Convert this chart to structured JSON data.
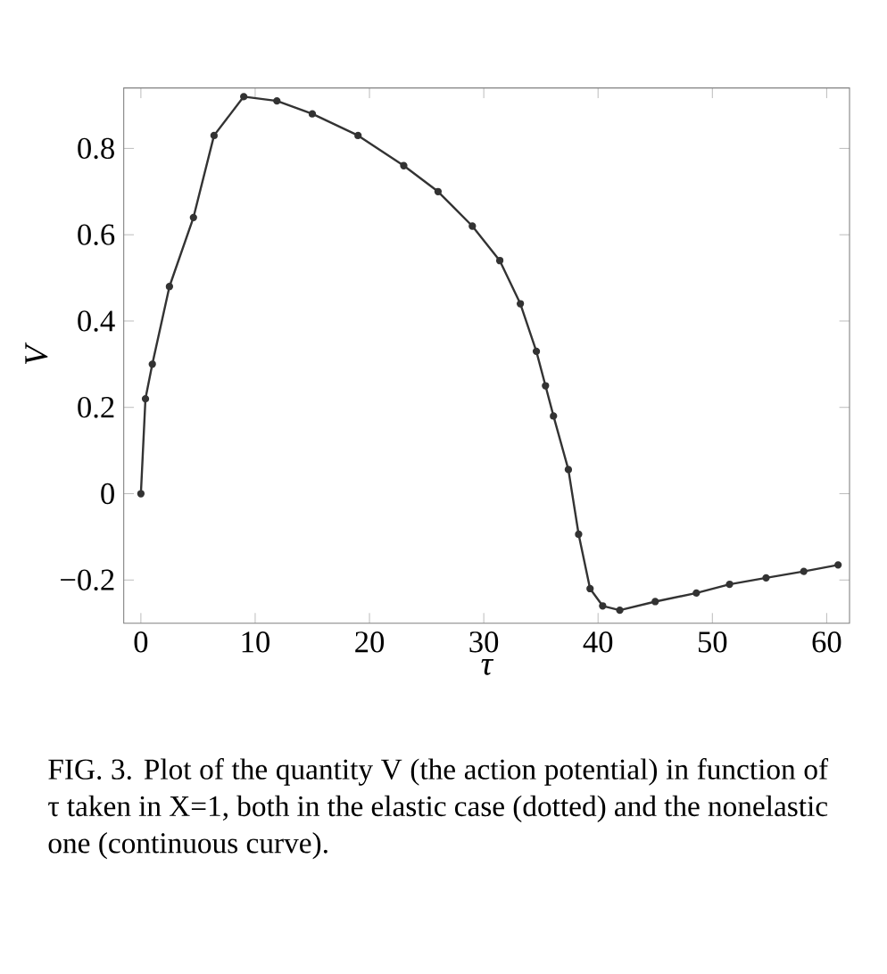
{
  "chart_data": {
    "type": "line",
    "xlabel": "τ",
    "ylabel": "V",
    "x": [
      0,
      0.4,
      1,
      2.5,
      4.6,
      6.4,
      9,
      11.9,
      15,
      19,
      23,
      26,
      29,
      31.4,
      33.2,
      34.6,
      35.4,
      36.1,
      37.4,
      38.3,
      39.3,
      40.4,
      41.9,
      45,
      48.6,
      51.5,
      54.7,
      58,
      61
    ],
    "series": [
      {
        "color": "#333333",
        "values": [
          0,
          0.22,
          0.3,
          0.48,
          0.64,
          0.83,
          0.92,
          0.91,
          0.88,
          0.83,
          0.76,
          0.7,
          0.62,
          0.54,
          0.44,
          0.33,
          0.25,
          0.18,
          0.056,
          -0.094,
          -0.22,
          -0.26,
          -0.27,
          -0.25,
          -0.23,
          -0.21,
          -0.195,
          -0.18,
          -0.165
        ]
      }
    ],
    "marker": "circle",
    "line_style": "solid",
    "xlim": [
      -1.5,
      62
    ],
    "ylim": [
      -0.3,
      0.94
    ],
    "xticks": [
      0,
      10,
      20,
      30,
      40,
      50,
      60
    ],
    "yticks": [
      {
        "value": -0.2,
        "label": "−0.2"
      },
      0,
      0.2,
      0.4,
      0.6,
      0.8
    ],
    "grid": false,
    "annotations": [
      "FIG. 3. Plot of the quantity V (the action potential) in function of τ taken in X=1, both in the elastic case (dotted) and the nonelastic one (continuous curve)."
    ]
  }
}
